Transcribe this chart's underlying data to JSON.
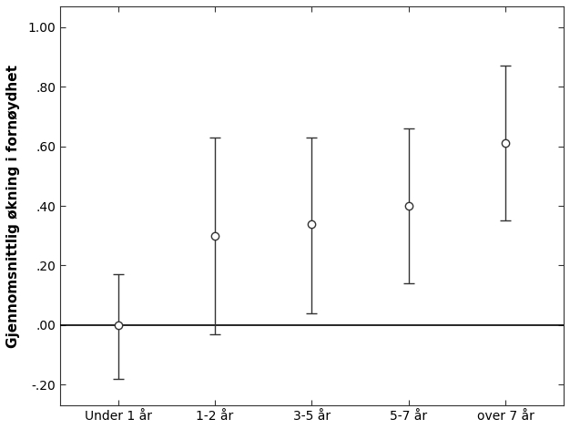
{
  "categories": [
    "Under 1 år",
    "1-2 år",
    "3-5 år",
    "5-7 år",
    "over 7 år"
  ],
  "means": [
    0.0,
    0.3,
    0.34,
    0.4,
    0.61
  ],
  "ci_lower": [
    -0.18,
    -0.03,
    0.04,
    0.14,
    0.35
  ],
  "ci_upper": [
    0.17,
    0.63,
    0.63,
    0.66,
    0.87
  ],
  "ylabel": "Gjennomsnittlig økning i fornøydhet",
  "ylim": [
    -0.27,
    1.07
  ],
  "yticks": [
    -0.2,
    0.0,
    0.2,
    0.4,
    0.6,
    0.8,
    1.0
  ],
  "ytick_labels": [
    "-.20",
    ".00",
    ".20",
    ".40",
    ".60",
    ".80",
    "1.00"
  ],
  "hline_y": 0.0,
  "marker_color": "white",
  "marker_edge_color": "#333333",
  "line_color": "#333333",
  "background_color": "#ffffff",
  "marker_size": 6,
  "marker_linewidth": 1.0,
  "capsize": 4,
  "linewidth": 1.0,
  "spine_color": "#333333",
  "tick_fontsize": 10,
  "ylabel_fontsize": 11,
  "xlabel_fontsize": 10
}
